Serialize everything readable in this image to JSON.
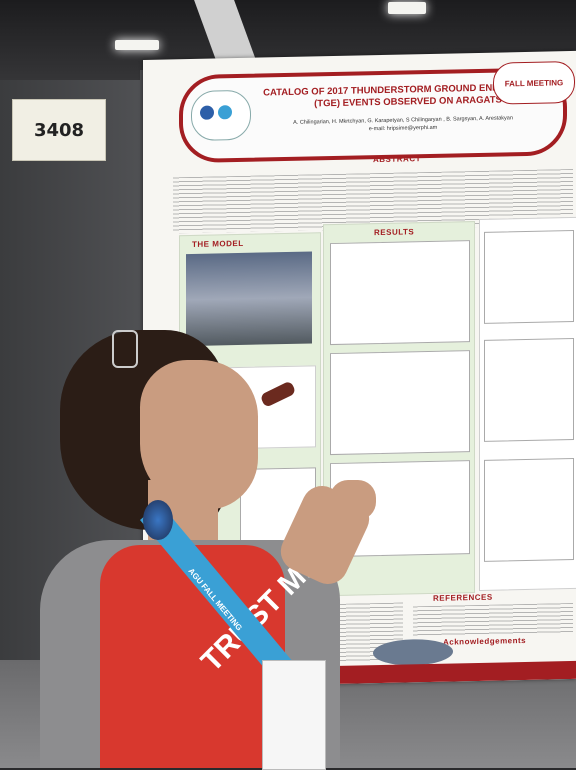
{
  "booth": {
    "number": "3408"
  },
  "poster": {
    "title": "CATALOG OF 2017 THUNDERSTORM GROUND ENHANCEMENT (TGE) EVENTS OBSERVED ON ARAGATS",
    "authors": "A. Chilingarian, H. Mkrtchyan, G. Karapetyan, S Chilingaryan , B. Sargsyan, A. Arestakyan",
    "email": "e-mail: hripsime@yerphi.am",
    "logo_right": "FALL MEETING",
    "sections": {
      "abstract": "ABSTRACT",
      "model": "THE MODEL",
      "results": "RESULTS",
      "references": "REFERENCES",
      "acknowledgements": "Acknowledgements"
    }
  },
  "shirt_text": "TRUST ME",
  "lanyard_text": "AGU FALL MEETING",
  "colors": {
    "poster_red": "#a31e22",
    "panel_green": "#e5f0dc",
    "shirt_red": "#d8382e",
    "lanyard_blue": "#3aa0d5"
  }
}
